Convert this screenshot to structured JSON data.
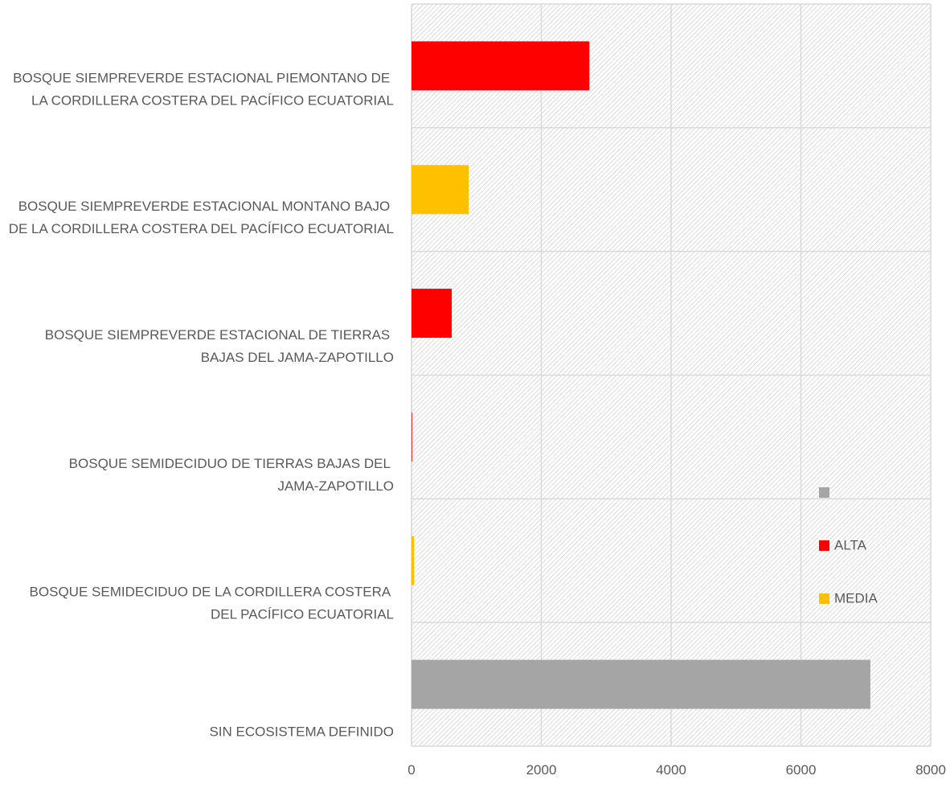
{
  "chart_data": {
    "type": "bar",
    "orientation": "horizontal",
    "categories": [
      "BOSQUE SIEMPREVERDE ESTACIONAL PIEMONTANO DE LA CORDILLERA COSTERA DEL PACÍFICO ECUATORIAL",
      "BOSQUE SIEMPREVERDE ESTACIONAL MONTANO BAJO DE LA CORDILLERA COSTERA DEL PACÍFICO ECUATORIAL",
      "BOSQUE SIEMPREVERDE ESTACIONAL DE TIERRAS BAJAS DEL JAMA-ZAPOTILLO",
      "BOSQUE SEMIDECIDUO DE TIERRAS BAJAS DEL JAMA-ZAPOTILLO",
      "BOSQUE SEMIDECIDUO DE LA CORDILLERA COSTERA DEL PACÍFICO ECUATORIAL",
      "SIN ECOSISTEMA DEFINIDO"
    ],
    "series": [
      {
        "name": null,
        "color": "#a5a5a5",
        "values": [
          null,
          null,
          null,
          null,
          null,
          7070
        ]
      },
      {
        "name": "ALTA",
        "color": "#ff0000",
        "values": [
          2740,
          null,
          620,
          10,
          null,
          null
        ]
      },
      {
        "name": "MEDIA",
        "color": "#ffc000",
        "values": [
          null,
          880,
          null,
          null,
          40,
          null
        ]
      }
    ],
    "xlim": [
      0,
      8000
    ],
    "xticks": [
      0,
      2000,
      4000,
      6000,
      8000
    ],
    "grid": true
  }
}
